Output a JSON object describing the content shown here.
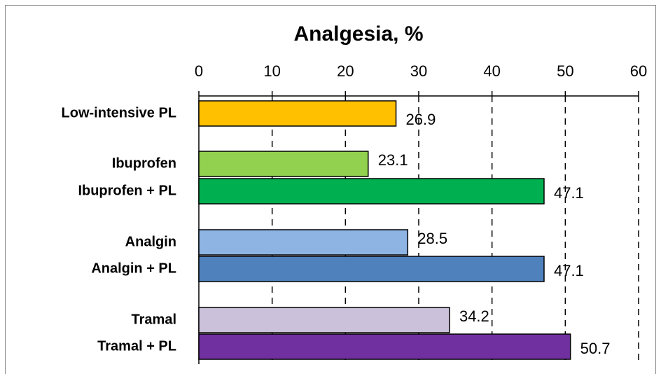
{
  "chart_data": {
    "type": "hbar",
    "title": "Analgesia, %",
    "categories": [
      "Low-intensive PL",
      "Ibuprofen",
      "Ibuprofen + PL",
      "Analgin",
      "Analgin + PL",
      "Tramal",
      "Tramal + PL"
    ],
    "values": [
      26.9,
      23.1,
      47.1,
      28.5,
      47.1,
      34.2,
      50.7
    ],
    "colors": [
      "#ffc000",
      "#92d050",
      "#00b050",
      "#8eb4e3",
      "#4f81bd",
      "#ccc1da",
      "#7030a0"
    ],
    "xlim": [
      0,
      60
    ],
    "xticks": [
      0,
      10,
      20,
      30,
      40,
      50,
      60
    ],
    "grid": true
  }
}
